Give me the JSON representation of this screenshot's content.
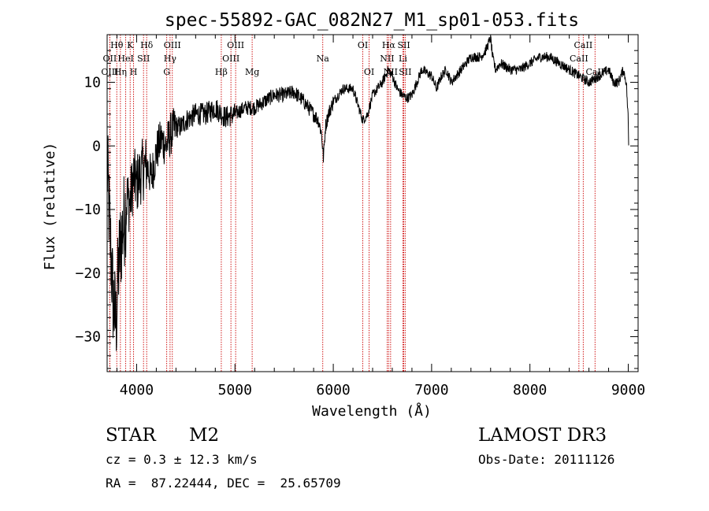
{
  "chart_data": {
    "type": "line",
    "title": "spec-55892-GAC_082N27_M1_sp01-053.fits",
    "xlabel": "Wavelength (Å)",
    "ylabel": "Flux (relative)",
    "xlim": [
      3700,
      9100
    ],
    "ylim": [
      -35.5,
      17.5
    ],
    "xticks": [
      4000,
      5000,
      6000,
      7000,
      8000,
      9000
    ],
    "yticks": [
      -30,
      -20,
      -10,
      0,
      10
    ],
    "grid": false,
    "series": [
      {
        "name": "spectrum",
        "anchors": [
          [
            3700,
            -3
          ],
          [
            3730,
            -14
          ],
          [
            3760,
            -24
          ],
          [
            3790,
            -28
          ],
          [
            3820,
            -18
          ],
          [
            3850,
            -14
          ],
          [
            3880,
            -11
          ],
          [
            3900,
            -8
          ],
          [
            3930,
            -9
          ],
          [
            3970,
            -5
          ],
          [
            4000,
            -6
          ],
          [
            4050,
            -4
          ],
          [
            4100,
            -3
          ],
          [
            4150,
            -5
          ],
          [
            4200,
            -1
          ],
          [
            4250,
            1
          ],
          [
            4300,
            0
          ],
          [
            4350,
            2
          ],
          [
            4400,
            3
          ],
          [
            4450,
            3
          ],
          [
            4500,
            4
          ],
          [
            4600,
            5
          ],
          [
            4700,
            5
          ],
          [
            4800,
            6
          ],
          [
            4900,
            4.5
          ],
          [
            5000,
            5
          ],
          [
            5100,
            6
          ],
          [
            5200,
            6
          ],
          [
            5300,
            7
          ],
          [
            5400,
            8
          ],
          [
            5500,
            8
          ],
          [
            5600,
            8.5
          ],
          [
            5700,
            7
          ],
          [
            5800,
            5
          ],
          [
            5850,
            4
          ],
          [
            5880,
            2
          ],
          [
            5900,
            -2
          ],
          [
            5920,
            3
          ],
          [
            5950,
            5
          ],
          [
            6000,
            7
          ],
          [
            6100,
            9
          ],
          [
            6200,
            9
          ],
          [
            6300,
            4
          ],
          [
            6350,
            5
          ],
          [
            6400,
            8
          ],
          [
            6500,
            10
          ],
          [
            6560,
            12
          ],
          [
            6600,
            11
          ],
          [
            6650,
            9
          ],
          [
            6700,
            8
          ],
          [
            6750,
            7.5
          ],
          [
            6800,
            8
          ],
          [
            6900,
            12
          ],
          [
            7000,
            11
          ],
          [
            7050,
            9
          ],
          [
            7100,
            11
          ],
          [
            7150,
            12
          ],
          [
            7200,
            10
          ],
          [
            7300,
            12
          ],
          [
            7400,
            14
          ],
          [
            7500,
            14
          ],
          [
            7550,
            15
          ],
          [
            7600,
            17
          ],
          [
            7620,
            14
          ],
          [
            7650,
            12
          ],
          [
            7700,
            13
          ],
          [
            7800,
            12
          ],
          [
            7900,
            12
          ],
          [
            8000,
            13
          ],
          [
            8100,
            14
          ],
          [
            8200,
            14
          ],
          [
            8300,
            13
          ],
          [
            8400,
            12
          ],
          [
            8500,
            11
          ],
          [
            8600,
            10
          ],
          [
            8700,
            11
          ],
          [
            8800,
            12
          ],
          [
            8850,
            10
          ],
          [
            8900,
            10
          ],
          [
            8950,
            12
          ],
          [
            8980,
            10
          ],
          [
            9000,
            4
          ],
          [
            9005,
            -1
          ]
        ]
      }
    ],
    "lines": [
      {
        "name": "Hθ",
        "x": 3798,
        "row": 0
      },
      {
        "name": "OII",
        "x": 3727,
        "row": 1
      },
      {
        "name": "OIII",
        "x": 3727,
        "row": 2
      },
      {
        "name": "K",
        "x": 3934,
        "row": 0
      },
      {
        "name": "HeI",
        "x": 3889,
        "row": 1
      },
      {
        "name": "Hη",
        "x": 3835,
        "row": 2
      },
      {
        "name": "Hδ",
        "x": 4102,
        "row": 0
      },
      {
        "name": "SII",
        "x": 4070,
        "row": 1
      },
      {
        "name": "H",
        "x": 3969,
        "row": 2
      },
      {
        "name": "OIII",
        "x": 4363,
        "row": 0
      },
      {
        "name": "Hγ",
        "x": 4340,
        "row": 1
      },
      {
        "name": "G",
        "x": 4306,
        "row": 2
      },
      {
        "name": "OIII",
        "x": 5007,
        "row": 0
      },
      {
        "name": "OIII",
        "x": 4959,
        "row": 1
      },
      {
        "name": "Hβ",
        "x": 4861,
        "row": 2
      },
      {
        "name": "Mg",
        "x": 5175,
        "row": 2
      },
      {
        "name": "Na",
        "x": 5893,
        "row": 1
      },
      {
        "name": "OI",
        "x": 6300,
        "row": 0
      },
      {
        "name": "OI",
        "x": 6364,
        "row": 2
      },
      {
        "name": "Hα",
        "x": 6563,
        "row": 0
      },
      {
        "name": "NII",
        "x": 6548,
        "row": 1
      },
      {
        "name": "NII",
        "x": 6583,
        "row": 2
      },
      {
        "name": "SII",
        "x": 6717,
        "row": 0
      },
      {
        "name": "Li",
        "x": 6708,
        "row": 1
      },
      {
        "name": "SII",
        "x": 6731,
        "row": 2
      },
      {
        "name": "CaII",
        "x": 8542,
        "row": 0
      },
      {
        "name": "CaII",
        "x": 8498,
        "row": 1
      },
      {
        "name": "CaII",
        "x": 8662,
        "row": 2
      }
    ]
  },
  "info": {
    "class": "STAR",
    "subclass": "M2",
    "survey": "LAMOST DR3",
    "cz": "cz = 0.3 ± 12.3 km/s",
    "obs_date": "Obs-Date: 20111126",
    "radec": "RA =  87.22444, DEC =  25.65709"
  },
  "colors": {
    "axis": "#000000",
    "spectrum": "#000000",
    "line_marker": "#cc0000"
  }
}
